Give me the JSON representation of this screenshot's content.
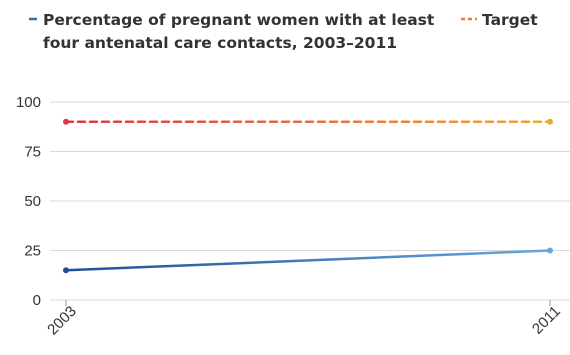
{
  "chart_data": {
    "type": "line",
    "x": [
      "2003",
      "2011"
    ],
    "ylim": [
      0,
      100
    ],
    "yticks": [
      0,
      25,
      50,
      75,
      100
    ],
    "grid": true,
    "legend_position": "top",
    "series": [
      {
        "name_lines": [
          "Percentage of pregnant women with at least",
          "four antenatal care contacts, 2003–2011"
        ],
        "values": [
          15,
          25
        ],
        "style": "solid",
        "colors": [
          "#1f4e96",
          "#6aa7dc"
        ]
      },
      {
        "name": "Target",
        "values": [
          90,
          90
        ],
        "style": "dashed",
        "colors": [
          "#e0364b",
          "#f0a830"
        ]
      }
    ]
  }
}
